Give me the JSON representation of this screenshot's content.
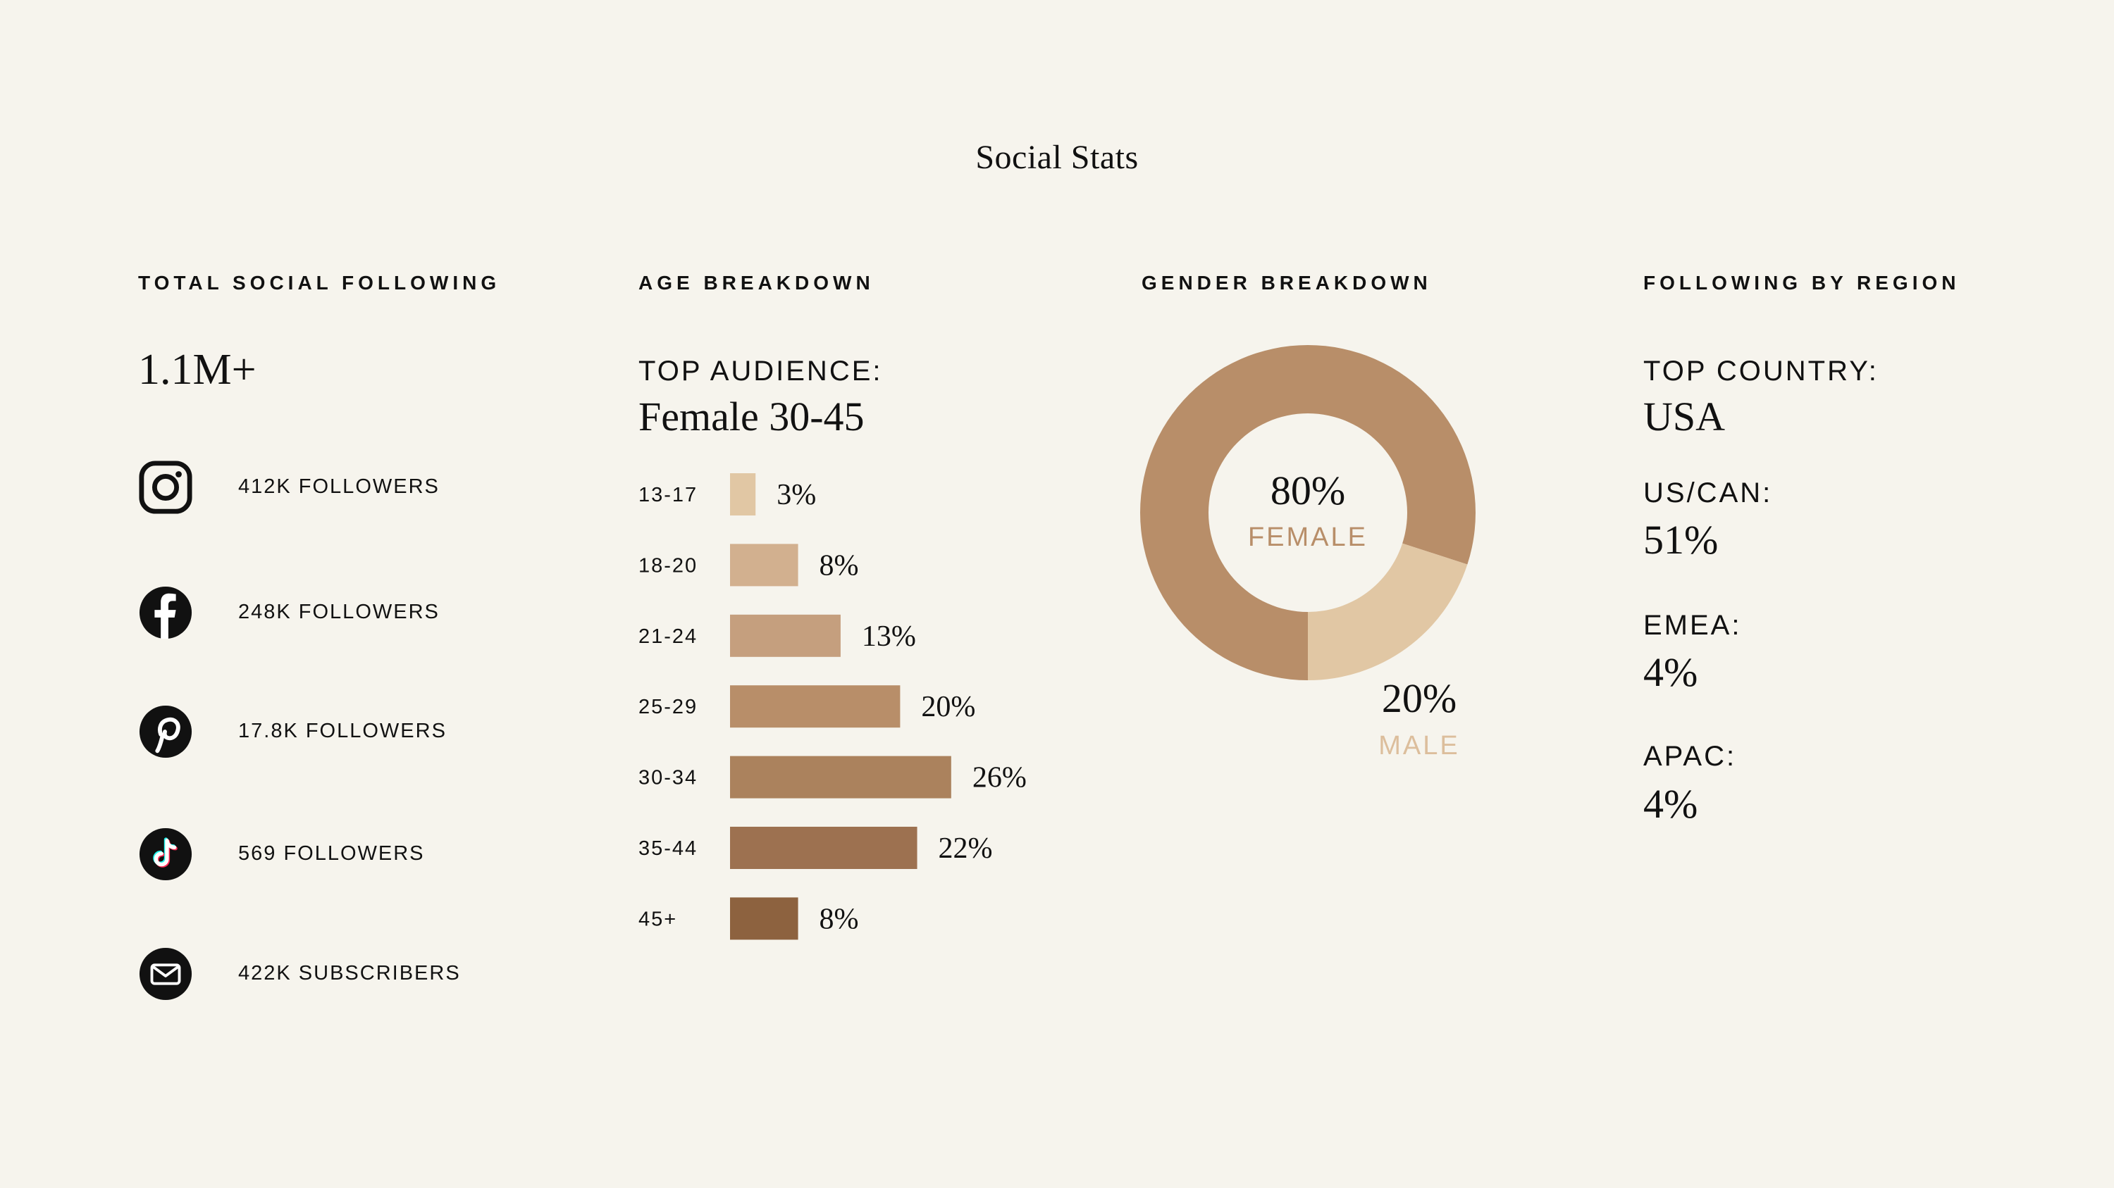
{
  "title": "Social Stats",
  "colors": {
    "background": "#f6f4ed",
    "female": "#b88e69",
    "male": "#e1c7a4",
    "age_bars": [
      "#e1c7a4",
      "#d2b08f",
      "#c59f7e",
      "#b88e69",
      "#ab825d",
      "#9d7150",
      "#8d623f"
    ]
  },
  "total_following": {
    "heading": "TOTAL SOCIAL FOLLOWING",
    "value": "1.1M+",
    "platforms": [
      {
        "icon": "instagram-icon",
        "label": "412K FOLLOWERS"
      },
      {
        "icon": "facebook-icon",
        "label": "248K FOLLOWERS"
      },
      {
        "icon": "pinterest-icon",
        "label": "17.8K FOLLOWERS"
      },
      {
        "icon": "tiktok-icon",
        "label": "569 FOLLOWERS"
      },
      {
        "icon": "email-icon",
        "label": "422K SUBSCRIBERS"
      }
    ]
  },
  "age": {
    "heading": "AGE BREAKDOWN",
    "top_label": "TOP AUDIENCE:",
    "top_value": "Female 30-45"
  },
  "gender": {
    "heading": "GENDER BREAKDOWN",
    "female_pct": "80%",
    "female_label": "FEMALE",
    "male_pct": "20%",
    "male_label": "MALE"
  },
  "region": {
    "heading": "FOLLOWING BY REGION",
    "items": [
      {
        "label": "TOP COUNTRY:",
        "value": "USA"
      },
      {
        "label": "US/CAN:",
        "value": "51%"
      },
      {
        "label": "EMEA:",
        "value": "4%"
      },
      {
        "label": "APAC:",
        "value": "4%"
      }
    ]
  },
  "chart_data": [
    {
      "type": "bar",
      "orientation": "horizontal",
      "categories": [
        "13-17",
        "18-20",
        "21-24",
        "25-29",
        "30-34",
        "35-44",
        "45+"
      ],
      "values": [
        3,
        8,
        13,
        20,
        26,
        22,
        8
      ],
      "value_labels": [
        "3%",
        "8%",
        "13%",
        "20%",
        "26%",
        "22%",
        "8%"
      ],
      "unit": "%"
    },
    {
      "type": "pie",
      "donut": true,
      "categories": [
        "FEMALE",
        "MALE"
      ],
      "values": [
        80,
        20
      ]
    }
  ]
}
